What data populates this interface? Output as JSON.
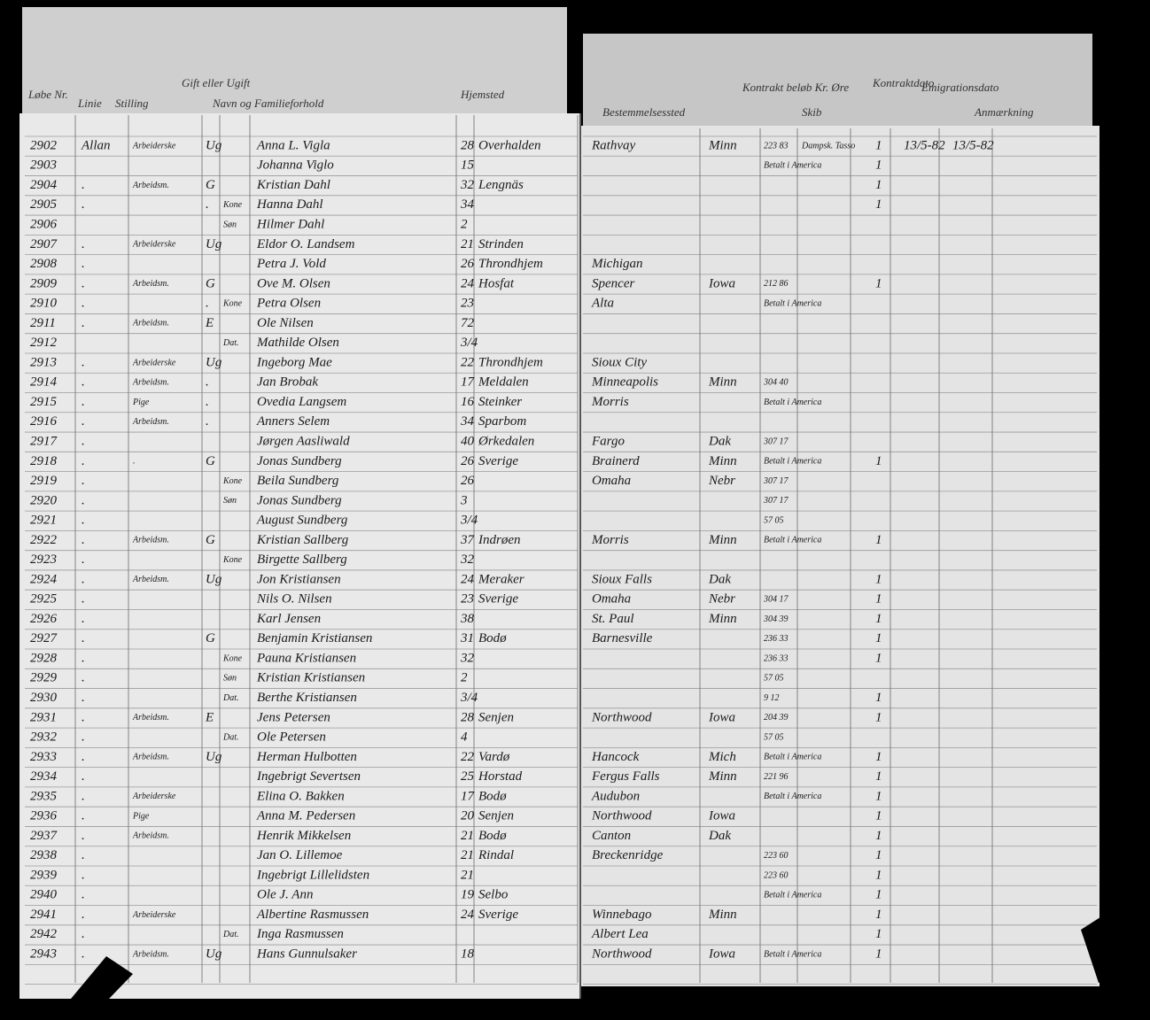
{
  "header": {
    "left": [
      "Løbe Nr.",
      "Linie",
      "Stilling",
      "Gift eller Ugift",
      "Navn og Familieforhold",
      "Hjemsted"
    ],
    "right": [
      "Bestemmelsessted",
      "Kontrakt beløb Kr. Øre",
      "Skib",
      "Kontraktdato",
      "Emigrationsdato",
      "Anmærkning"
    ]
  },
  "rows": [
    [
      "2902",
      "Allan",
      "Arbeiderske",
      "Ug",
      null,
      "Anna L. Vigla",
      "28",
      "Overhalden",
      "Rathvay",
      "Minn",
      "223 83",
      "Dampsk. Tasso",
      "1",
      "13/5-82",
      "13/5-82"
    ],
    [
      "2903",
      null,
      null,
      null,
      null,
      "Johanna Viglo",
      "15",
      null,
      null,
      null,
      "Betalt i America",
      null,
      "1",
      null,
      null
    ],
    [
      "2904",
      ".",
      "Arbeidsm.",
      "G",
      null,
      "Kristian Dahl",
      "32",
      "Lengnäs",
      null,
      null,
      null,
      null,
      "1",
      null,
      null
    ],
    [
      "2905",
      ".",
      null,
      ".",
      "Kone",
      "Hanna Dahl",
      "34",
      null,
      null,
      null,
      null,
      null,
      "1",
      null,
      null
    ],
    [
      "2906",
      null,
      null,
      null,
      "Søn",
      "Hilmer Dahl",
      "2",
      null,
      null,
      null,
      null,
      null,
      null,
      null,
      null
    ],
    [
      "2907",
      ".",
      "Arbeiderske",
      "Ug",
      null,
      "Eldor O. Landsem",
      "21",
      "Strinden",
      null,
      null,
      null,
      null,
      null,
      null,
      null
    ],
    [
      "2908",
      ".",
      null,
      null,
      null,
      "Petra J. Vold",
      "26",
      "Throndhjem",
      "Michigan",
      null,
      null,
      null,
      null,
      null,
      null
    ],
    [
      "2909",
      ".",
      "Arbeidsm.",
      "G",
      null,
      "Ove M. Olsen",
      "24",
      "Hosfat",
      "Spencer",
      "Iowa",
      "212 86",
      null,
      "1",
      null,
      null
    ],
    [
      "2910",
      ".",
      null,
      ".",
      "Kone",
      "Petra Olsen",
      "23",
      null,
      "Alta",
      null,
      "Betalt i America",
      null,
      null,
      null,
      null
    ],
    [
      "2911",
      ".",
      "Arbeidsm.",
      "E",
      null,
      "Ole Nilsen",
      "72",
      null,
      null,
      null,
      null,
      null,
      null,
      null,
      null
    ],
    [
      "2912",
      null,
      null,
      null,
      "Dat.",
      "Mathilde Olsen",
      "3/4",
      null,
      null,
      null,
      null,
      null,
      null,
      null,
      null
    ],
    [
      "2913",
      ".",
      "Arbeiderske",
      "Ug",
      null,
      "Ingeborg Mae",
      "22",
      "Throndhjem",
      "Sioux City",
      null,
      null,
      null,
      null,
      null,
      null
    ],
    [
      "2914",
      ".",
      "Arbeidsm.",
      ".",
      null,
      "Jan Brobak",
      "17",
      "Meldalen",
      "Minneapolis",
      "Minn",
      "304 40",
      null,
      null,
      null,
      null
    ],
    [
      "2915",
      ".",
      "Pige",
      ".",
      null,
      "Ovedia Langsem",
      "16",
      "Steinker",
      "Morris",
      null,
      "Betalt i America",
      null,
      null,
      null,
      null
    ],
    [
      "2916",
      ".",
      "Arbeidsm.",
      ".",
      null,
      "Anners Selem",
      "34",
      "Sparbom",
      null,
      null,
      null,
      null,
      null,
      null,
      null
    ],
    [
      "2917",
      ".",
      null,
      null,
      null,
      "Jørgen Aasliwald",
      "40",
      "Ørkedalen",
      "Fargo",
      "Dak",
      "307 17",
      null,
      null,
      null,
      null
    ],
    [
      "2918",
      ".",
      ".",
      "G",
      null,
      "Jonas Sundberg",
      "26",
      "Sverige",
      "Brainerd",
      "Minn",
      "Betalt i America",
      null,
      "1",
      null,
      null
    ],
    [
      "2919",
      ".",
      null,
      null,
      "Kone",
      "Beila Sundberg",
      "26",
      null,
      "Omaha",
      "Nebr",
      "307 17",
      null,
      null,
      null,
      null
    ],
    [
      "2920",
      ".",
      null,
      null,
      "Søn",
      "Jonas Sundberg",
      "3",
      null,
      null,
      null,
      "307 17",
      null,
      null,
      null,
      null
    ],
    [
      "2921",
      ".",
      null,
      null,
      null,
      "August Sundberg",
      "3/4",
      null,
      null,
      null,
      "57 05",
      null,
      null,
      null,
      null
    ],
    [
      "2922",
      ".",
      "Arbeidsm.",
      "G",
      null,
      "Kristian Sallberg",
      "37",
      "Indrøen",
      "Morris",
      "Minn",
      "Betalt i America",
      null,
      "1",
      null,
      null
    ],
    [
      "2923",
      ".",
      null,
      null,
      "Kone",
      "Birgette Sallberg",
      "32",
      null,
      null,
      null,
      null,
      null,
      null,
      null,
      null
    ],
    [
      "2924",
      ".",
      "Arbeidsm.",
      "Ug",
      null,
      "Jon Kristiansen",
      "24",
      "Meraker",
      "Sioux Falls",
      "Dak",
      null,
      null,
      "1",
      null,
      null
    ],
    [
      "2925",
      ".",
      null,
      null,
      null,
      "Nils O. Nilsen",
      "23",
      "Sverige",
      "Omaha",
      "Nebr",
      "304 17",
      null,
      "1",
      null,
      null
    ],
    [
      "2926",
      ".",
      null,
      null,
      null,
      "Karl Jensen",
      "38",
      null,
      "St. Paul",
      "Minn",
      "304 39",
      null,
      "1",
      null,
      null
    ],
    [
      "2927",
      ".",
      null,
      "G",
      null,
      "Benjamin Kristiansen",
      "31",
      "Bodø",
      "Barnesville",
      null,
      "236 33",
      null,
      "1",
      null,
      null
    ],
    [
      "2928",
      ".",
      null,
      null,
      "Kone",
      "Pauna Kristiansen",
      "32",
      null,
      null,
      null,
      "236 33",
      null,
      "1",
      null,
      null
    ],
    [
      "2929",
      ".",
      null,
      null,
      "Søn",
      "Kristian Kristiansen",
      "2",
      null,
      null,
      null,
      "57 05",
      null,
      null,
      null,
      null
    ],
    [
      "2930",
      ".",
      null,
      null,
      "Dat.",
      "Berthe Kristiansen",
      "3/4",
      null,
      null,
      null,
      "9 12",
      null,
      "1",
      null,
      null
    ],
    [
      "2931",
      ".",
      "Arbeidsm.",
      "E",
      null,
      "Jens Petersen",
      "28",
      "Senjen",
      "Northwood",
      "Iowa",
      "204 39",
      null,
      "1",
      null,
      null
    ],
    [
      "2932",
      ".",
      null,
      null,
      "Dat.",
      "Ole Petersen",
      "4",
      null,
      null,
      null,
      "57 05",
      null,
      null,
      null,
      null
    ],
    [
      "2933",
      ".",
      "Arbeidsm.",
      "Ug",
      null,
      "Herman Hulbotten",
      "22",
      "Vardø",
      "Hancock",
      "Mich",
      "Betalt i America",
      null,
      "1",
      null,
      null
    ],
    [
      "2934",
      ".",
      null,
      null,
      null,
      "Ingebrigt Severtsen",
      "25",
      "Horstad",
      "Fergus Falls",
      "Minn",
      "221 96",
      null,
      "1",
      null,
      null
    ],
    [
      "2935",
      ".",
      "Arbeiderske",
      null,
      null,
      "Elina O. Bakken",
      "17",
      "Bodø",
      "Audubon",
      null,
      "Betalt i America",
      null,
      "1",
      null,
      null
    ],
    [
      "2936",
      ".",
      "Pige",
      null,
      null,
      "Anna M. Pedersen",
      "20",
      "Senjen",
      "Northwood",
      "Iowa",
      null,
      null,
      "1",
      null,
      null
    ],
    [
      "2937",
      ".",
      "Arbeidsm.",
      null,
      null,
      "Henrik Mikkelsen",
      "21",
      "Bodø",
      "Canton",
      "Dak",
      null,
      null,
      "1",
      null,
      null
    ],
    [
      "2938",
      ".",
      null,
      null,
      null,
      "Jan O. Lillemoe",
      "21",
      "Rindal",
      "Breckenridge",
      null,
      "223 60",
      null,
      "1",
      null,
      null
    ],
    [
      "2939",
      ".",
      null,
      null,
      null,
      "Ingebrigt Lillelidsten",
      "21",
      null,
      null,
      null,
      "223 60",
      null,
      "1",
      null,
      null
    ],
    [
      "2940",
      ".",
      null,
      null,
      null,
      "Ole J. Ann",
      "19",
      "Selbo",
      null,
      null,
      "Betalt i America",
      null,
      "1",
      null,
      null
    ],
    [
      "2941",
      ".",
      "Arbeiderske",
      null,
      null,
      "Albertine Rasmussen",
      "24",
      "Sverige",
      "Winnebago",
      "Minn",
      null,
      null,
      "1",
      null,
      null
    ],
    [
      "2942",
      ".",
      null,
      null,
      "Dat.",
      "Inga Rasmussen",
      null,
      null,
      "Albert Lea",
      null,
      null,
      null,
      "1",
      null,
      null
    ],
    [
      "2943",
      ".",
      "Arbeidsm.",
      "Ug",
      null,
      "Hans Gunnulsaker",
      "18",
      null,
      "Northwood",
      "Iowa",
      "Betalt i America",
      null,
      "1",
      null,
      null
    ]
  ]
}
